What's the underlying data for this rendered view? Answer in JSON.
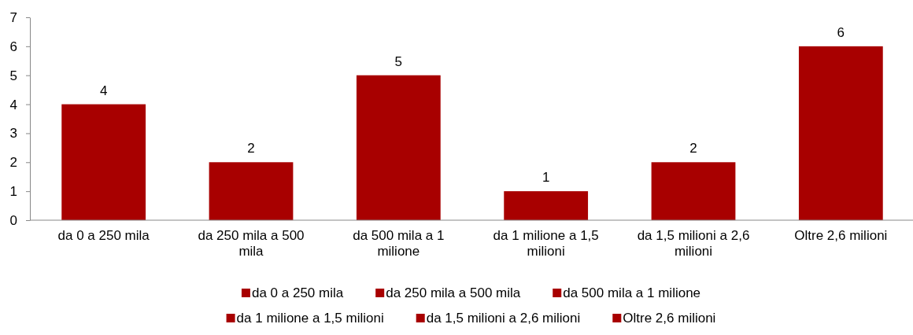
{
  "chart_data": {
    "type": "bar",
    "categories": [
      "da 0 a 250 mila",
      "da 250 mila a 500 mila",
      "da 500 mila a 1 milione",
      "da 1 milione a 1,5 milioni",
      "da 1,5 milioni a 2,6 milioni",
      "Oltre 2,6 milioni"
    ],
    "stacked": true,
    "series": [
      {
        "name": "da 0 a 250 mila",
        "color": "#a80000",
        "values": [
          4,
          null,
          null,
          null,
          null,
          null
        ]
      },
      {
        "name": "da 250 mila a 500 mila",
        "color": "#a80000",
        "values": [
          null,
          2,
          null,
          null,
          null,
          null
        ]
      },
      {
        "name": "da 500 mila a 1 milione",
        "color": "#a80000",
        "values": [
          null,
          null,
          5,
          null,
          null,
          null
        ]
      },
      {
        "name": "da 1 milione a 1,5 milioni",
        "color": "#a80000",
        "values": [
          null,
          null,
          null,
          1,
          null,
          null
        ]
      },
      {
        "name": "da 1,5 milioni a 2,6 milioni",
        "color": "#a80000",
        "values": [
          null,
          null,
          null,
          null,
          2,
          null
        ]
      },
      {
        "name": "Oltre 2,6 milioni",
        "color": "#a80000",
        "values": [
          null,
          null,
          null,
          null,
          null,
          6
        ]
      }
    ],
    "ylim": [
      0,
      7
    ],
    "yticks": [
      0,
      1,
      2,
      3,
      4,
      5,
      6,
      7
    ],
    "grid": false,
    "data_labels": true,
    "legend": "bottom"
  }
}
